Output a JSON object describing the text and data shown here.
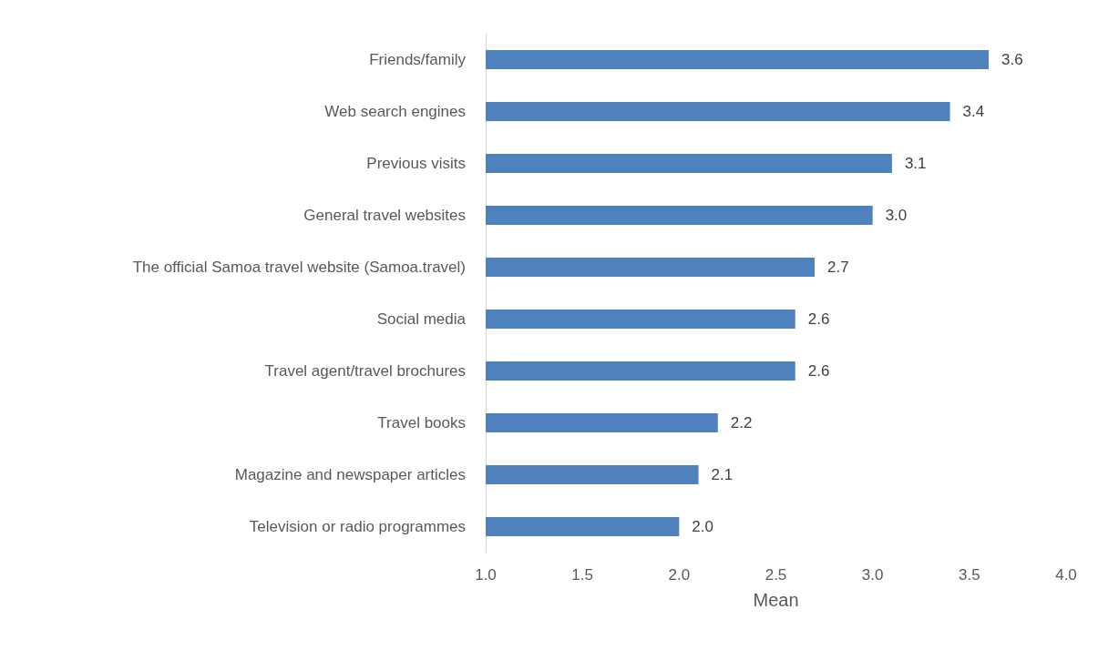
{
  "chart_data": {
    "type": "bar",
    "orientation": "horizontal",
    "xlabel": "Mean",
    "categories": [
      "Friends/family",
      "Web search engines",
      "Previous visits",
      "General travel websites",
      "The official Samoa travel website (Samoa.travel)",
      "Social media",
      "Travel agent/travel brochures",
      "Travel books",
      "Magazine and newspaper articles",
      "Television or radio programmes"
    ],
    "values": [
      3.6,
      3.4,
      3.1,
      3.0,
      2.7,
      2.6,
      2.6,
      2.2,
      2.1,
      2.0
    ],
    "value_labels": [
      "3.6",
      "3.4",
      "3.1",
      "3.0",
      "2.7",
      "2.6",
      "2.6",
      "2.2",
      "2.1",
      "2.0"
    ],
    "color": "#4f81bd",
    "grid": false,
    "xlim": [
      1,
      4
    ],
    "xticks": [
      {
        "value": 1,
        "label": "1.0"
      },
      {
        "value": 1.5,
        "label": "1.5"
      },
      {
        "value": 2,
        "label": "2.0"
      },
      {
        "value": 2.5,
        "label": "2.5"
      },
      {
        "value": 3,
        "label": "3.0"
      },
      {
        "value": 3.5,
        "label": "3.5"
      },
      {
        "value": 4,
        "label": "4.0"
      }
    ]
  }
}
